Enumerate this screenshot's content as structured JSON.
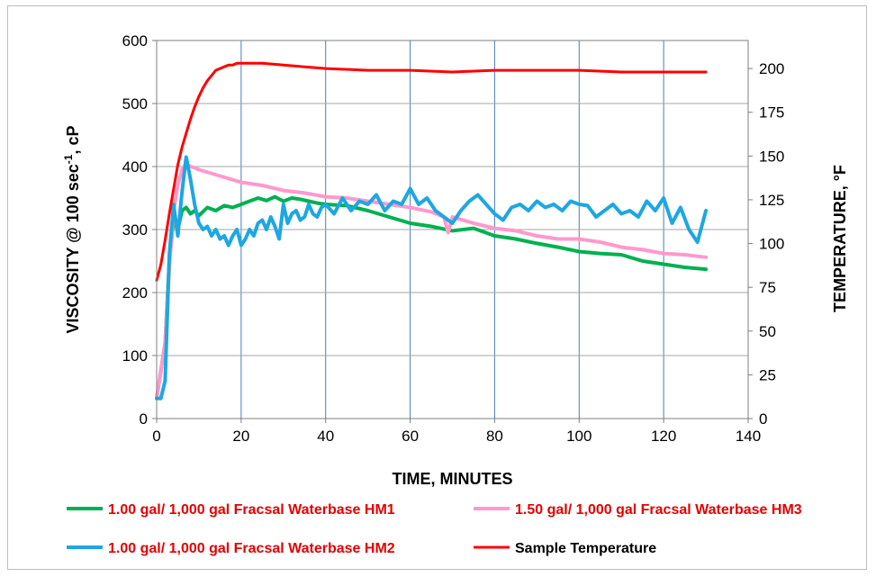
{
  "chart_data": {
    "type": "line",
    "xlabel": "TIME,  MINUTES",
    "ylabel": "VISCOSITY  @ 100 sec",
    "ylabel_sup": "-1",
    "ylabel_suffix": ", cP",
    "y2label": "TEMPERATURE,  °F",
    "xlim": [
      0,
      140
    ],
    "ylim": [
      0,
      600
    ],
    "y2lim": [
      0,
      216
    ],
    "x_ticks": [
      0,
      20,
      40,
      60,
      80,
      100,
      120,
      140
    ],
    "y_ticks": [
      0,
      100,
      200,
      300,
      400,
      500,
      600
    ],
    "y2_ticks": [
      0,
      25,
      50,
      75,
      100,
      125,
      150,
      175,
      200
    ],
    "x_tick_labels": [
      "0",
      "20",
      "40",
      "60",
      "80",
      "100",
      "120",
      "140"
    ],
    "y_tick_labels": [
      "0",
      "100",
      "200",
      "300",
      "400",
      "500",
      "600"
    ],
    "y2_tick_labels": [
      "0",
      "25",
      "50",
      "75",
      "100",
      "125",
      "150",
      "175",
      "200"
    ],
    "grid": "vertical",
    "legend_position": "bottom",
    "series": [
      {
        "name": "1.00 gal/ 1,000 gal Fracsal Waterbase HM1",
        "color": "#00b050",
        "axis": "left",
        "x": [
          0,
          2,
          3,
          4,
          5,
          6,
          7,
          8,
          9,
          10,
          12,
          14,
          16,
          18,
          20,
          22,
          24,
          26,
          28,
          30,
          32,
          34,
          36,
          38,
          40,
          45,
          50,
          55,
          60,
          65,
          70,
          75,
          80,
          85,
          90,
          95,
          100,
          105,
          110,
          115,
          120,
          125,
          130
        ],
        "y": [
          32,
          120,
          250,
          315,
          300,
          330,
          335,
          325,
          330,
          322,
          335,
          330,
          338,
          335,
          340,
          345,
          350,
          346,
          352,
          345,
          350,
          348,
          345,
          342,
          340,
          338,
          330,
          320,
          310,
          305,
          298,
          302,
          290,
          285,
          278,
          272,
          265,
          262,
          260,
          250,
          245,
          240,
          237
        ]
      },
      {
        "name": "1.50 gal/ 1,000 gal Fracsal Waterbase HM3",
        "color": "#ff99cc",
        "axis": "left",
        "x": [
          0,
          2,
          3,
          4,
          5,
          6,
          7,
          8,
          9,
          10,
          15,
          20,
          25,
          30,
          35,
          40,
          45,
          50,
          55,
          60,
          65,
          68,
          69,
          70,
          75,
          80,
          85,
          90,
          95,
          100,
          105,
          110,
          115,
          120,
          125,
          130
        ],
        "y": [
          32,
          120,
          240,
          330,
          370,
          395,
          405,
          400,
          398,
          395,
          385,
          375,
          370,
          362,
          358,
          352,
          350,
          345,
          340,
          335,
          328,
          320,
          295,
          320,
          310,
          302,
          298,
          290,
          285,
          285,
          280,
          272,
          268,
          262,
          260,
          256
        ]
      },
      {
        "name": "1.00 gal/ 1,000 gal Fracsal Waterbase HM2",
        "color": "#1ea7e1",
        "axis": "left",
        "x": [
          0,
          1,
          2,
          3,
          4,
          5,
          6,
          7,
          8,
          9,
          10,
          11,
          12,
          13,
          14,
          15,
          16,
          17,
          18,
          19,
          20,
          21,
          22,
          23,
          24,
          25,
          26,
          27,
          28,
          29,
          30,
          31,
          32,
          33,
          34,
          35,
          36,
          37,
          38,
          39,
          40,
          42,
          44,
          46,
          48,
          50,
          52,
          54,
          56,
          58,
          60,
          62,
          64,
          66,
          68,
          70,
          72,
          74,
          76,
          78,
          80,
          82,
          84,
          86,
          88,
          90,
          92,
          94,
          96,
          98,
          100,
          102,
          104,
          106,
          108,
          110,
          112,
          114,
          116,
          118,
          120,
          122,
          124,
          126,
          128,
          130
        ],
        "y": [
          32,
          32,
          60,
          260,
          340,
          290,
          360,
          415,
          380,
          340,
          310,
          300,
          305,
          290,
          300,
          285,
          290,
          275,
          290,
          300,
          275,
          285,
          300,
          290,
          310,
          315,
          300,
          320,
          305,
          285,
          340,
          310,
          325,
          330,
          315,
          320,
          340,
          325,
          320,
          335,
          340,
          325,
          350,
          330,
          345,
          340,
          355,
          330,
          345,
          340,
          365,
          340,
          350,
          330,
          320,
          310,
          330,
          345,
          355,
          340,
          325,
          315,
          335,
          340,
          330,
          345,
          335,
          340,
          330,
          345,
          340,
          338,
          320,
          330,
          340,
          325,
          330,
          320,
          345,
          330,
          350,
          310,
          335,
          300,
          280,
          330
        ]
      },
      {
        "name": "Sample Temperature",
        "color": "#ff0000",
        "axis": "right",
        "x": [
          0,
          1,
          2,
          3,
          4,
          5,
          6,
          7,
          8,
          9,
          10,
          11,
          12,
          13,
          14,
          15,
          16,
          17,
          18,
          19,
          20,
          25,
          30,
          35,
          40,
          50,
          60,
          70,
          80,
          90,
          100,
          110,
          120,
          130
        ],
        "y": [
          79,
          88,
          102,
          117,
          131,
          145,
          155,
          163,
          171,
          178,
          184,
          189,
          193,
          196,
          199,
          200,
          201,
          202,
          202,
          203,
          203,
          203,
          202,
          201,
          200,
          199,
          199,
          198,
          199,
          199,
          199,
          198,
          198,
          198
        ]
      }
    ]
  }
}
